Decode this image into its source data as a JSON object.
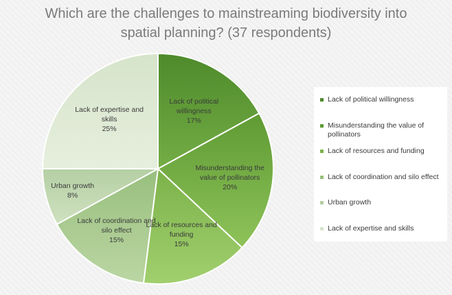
{
  "chart_data": {
    "type": "pie",
    "title": "Which are the challenges to mainstreaming biodiversity into spatial planning? (37 respondents)",
    "title_lines": [
      "Which are the challenges to mainstreaming biodiversity into",
      "spatial planning? (37 respondents)"
    ],
    "categories": [
      "Lack of political willingness",
      "Misunderstanding the value of pollinators",
      "Lack of resources and funding",
      "Lack of coordination and silo effect",
      "Urban growth",
      "Lack of expertise and skills"
    ],
    "values": [
      17,
      20,
      15,
      15,
      8,
      25
    ],
    "unit": "%",
    "legend_position": "right",
    "slice_label_lines": [
      [
        "Lack of political",
        "willingness",
        "17%"
      ],
      [
        "Misunderstanding the",
        "value of pollinators",
        "20%"
      ],
      [
        "Lack of resources and",
        "funding",
        "15%"
      ],
      [
        "Lack of coordination and",
        "silo effect",
        "15%"
      ],
      [
        "Urban growth",
        "8%"
      ],
      [
        "Lack of expertise and",
        "skills",
        "25%"
      ]
    ],
    "legend_label_lines": [
      [
        "Lack of political willingness"
      ],
      [
        "Misunderstanding the value of",
        "pollinators"
      ],
      [
        "Lack of resources and funding"
      ],
      [
        "Lack of coordination and silo effect"
      ],
      [
        "Urban growth"
      ],
      [
        "Lack of expertise and skills"
      ]
    ],
    "colors": [
      [
        "#4e8a2b",
        "#74ad45"
      ],
      [
        "#5f9a33",
        "#8ec35a"
      ],
      [
        "#7cb24a",
        "#a1cf6e"
      ],
      [
        "#98bf7e",
        "#bbd6a3"
      ],
      [
        "#b5cfa4",
        "#cfe1c0"
      ],
      [
        "#d6e4cb",
        "#e6efdd"
      ]
    ]
  }
}
